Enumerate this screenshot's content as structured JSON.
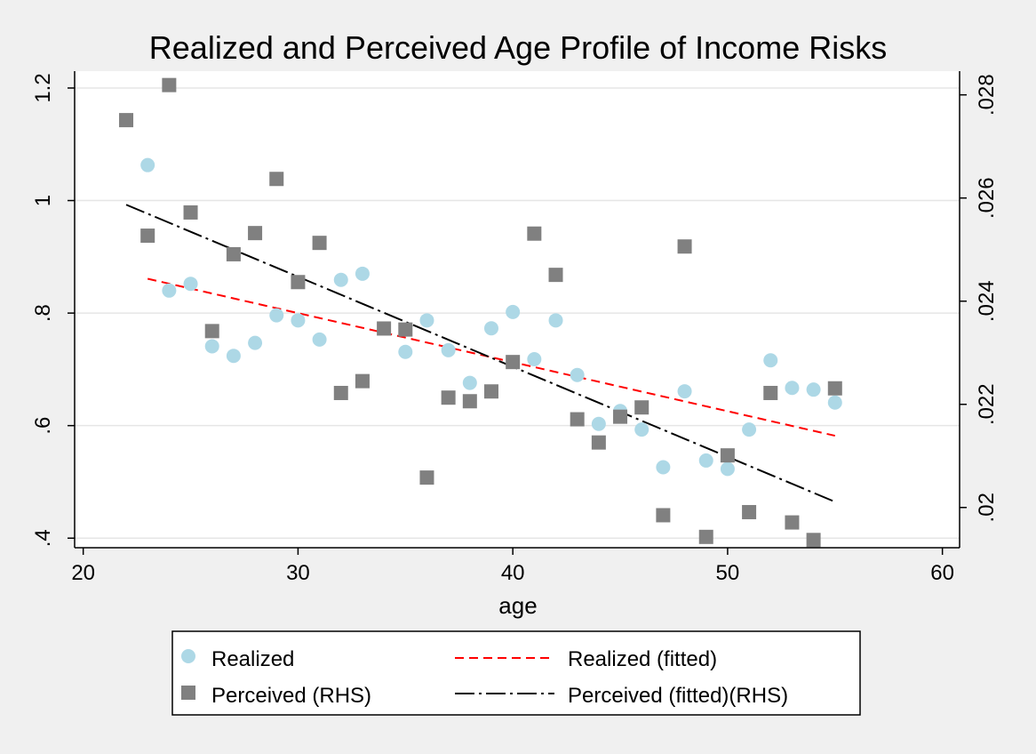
{
  "chart_data": {
    "type": "scatter",
    "title": "Realized and Perceived Age Profile of Income Risks",
    "xlabel": "age",
    "xlim": [
      19.6,
      60.8
    ],
    "ylim_left": [
      0.383,
      1.23
    ],
    "ylim_right": [
      0.01922,
      0.02846
    ],
    "x_ticks": [
      20,
      30,
      40,
      50,
      60
    ],
    "x_tick_labels": [
      "20",
      "30",
      "40",
      "50",
      "60"
    ],
    "y_left_ticks": [
      0.4,
      0.6,
      0.8,
      1.0,
      1.2
    ],
    "y_left_tick_labels": [
      ".4",
      ".6",
      ".8",
      "1",
      "1.2"
    ],
    "y_right_ticks": [
      0.02,
      0.022,
      0.024,
      0.026,
      0.028
    ],
    "y_right_tick_labels": [
      ".02",
      ".022",
      ".024",
      ".026",
      ".028"
    ],
    "grid": true,
    "legend_position": "bottom",
    "colors": {
      "background": "#f0f0f0",
      "plot_area": "#ffffff",
      "realized": "#add8e6",
      "perceived": "#808080",
      "realized_fit": "#ff0000",
      "perceived_fit": "#000000",
      "grid": "#e6e6e6"
    },
    "series": [
      {
        "name": "Realized",
        "axis": "left",
        "marker": "circle",
        "x": [
          23,
          24,
          25,
          26,
          27,
          28,
          29,
          30,
          31,
          32,
          33,
          35,
          36,
          37,
          38,
          39,
          40,
          41,
          42,
          43,
          44,
          45,
          46,
          47,
          48,
          49,
          50,
          51,
          52,
          53,
          54,
          55
        ],
        "y": [
          1.063,
          0.84,
          0.852,
          0.741,
          0.724,
          0.747,
          0.796,
          0.787,
          0.753,
          0.859,
          0.87,
          0.731,
          0.787,
          0.734,
          0.676,
          0.773,
          0.802,
          0.718,
          0.787,
          0.69,
          0.603,
          0.626,
          0.593,
          0.526,
          0.661,
          0.538,
          0.523,
          0.593,
          0.716,
          0.667,
          0.664,
          0.641
        ]
      },
      {
        "name": "Perceived (RHS)",
        "axis": "right",
        "marker": "square",
        "x": [
          22,
          23,
          24,
          25,
          26,
          27,
          28,
          29,
          30,
          31,
          32,
          33,
          34,
          35,
          36,
          37,
          38,
          39,
          40,
          41,
          42,
          43,
          44,
          45,
          46,
          47,
          48,
          49,
          50,
          51,
          52,
          53,
          54,
          55
        ],
        "y": [
          0.02751,
          0.02527,
          0.02819,
          0.02572,
          0.02342,
          0.02491,
          0.02532,
          0.02637,
          0.02437,
          0.02513,
          0.02222,
          0.02245,
          0.02347,
          0.02345,
          0.02058,
          0.02213,
          0.02206,
          0.02225,
          0.02282,
          0.02531,
          0.02451,
          0.02171,
          0.02126,
          0.02176,
          0.02194,
          0.01985,
          0.02506,
          0.01943,
          0.02101,
          0.01991,
          0.02222,
          0.01971,
          0.01937,
          0.02231
        ]
      },
      {
        "name": "Realized (fitted)",
        "axis": "left",
        "style": "dashed",
        "x": [
          23,
          55
        ],
        "y": [
          0.861,
          0.582
        ]
      },
      {
        "name": "Perceived (fitted)(RHS)",
        "axis": "right",
        "style": "dash-dot",
        "x": [
          22,
          55
        ],
        "y": [
          0.02587,
          0.02011
        ]
      }
    ],
    "legend": [
      {
        "label": "Realized",
        "marker": "circle",
        "color": "#add8e6"
      },
      {
        "label": "Realized (fitted)",
        "marker": "dashed-line",
        "color": "#ff0000"
      },
      {
        "label": "Perceived (RHS)",
        "marker": "square",
        "color": "#808080"
      },
      {
        "label": "Perceived (fitted)(RHS)",
        "marker": "dash-dot-line",
        "color": "#000000"
      }
    ]
  }
}
